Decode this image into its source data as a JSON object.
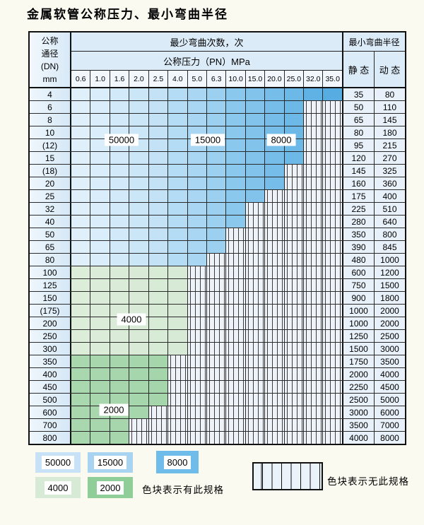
{
  "title": "金属软管公称压力、最小弯曲半径",
  "table": {
    "header": {
      "dn_lines": [
        "公称",
        "通径",
        "(DN)",
        "mm"
      ],
      "bend_times": "最少弯曲次数，次",
      "pressure": "公称压力（PN）MPa",
      "radius": "最小弯曲半径",
      "static_label": "静 态",
      "dynamic_label": "动 态",
      "pressures": [
        "0.6",
        "1.0",
        "1.6",
        "2.0",
        "2.5",
        "4.0",
        "5.0",
        "6.3",
        "10.0",
        "15.0",
        "20.0",
        "25.0",
        "32.0",
        "35.0"
      ]
    },
    "rows": [
      {
        "dn": "4",
        "family": "blue",
        "cov": 13,
        "static": "35",
        "dynamic": "80"
      },
      {
        "dn": "6",
        "family": "blue",
        "cov": 11,
        "static": "50",
        "dynamic": "110"
      },
      {
        "dn": "8",
        "family": "blue",
        "cov": 11,
        "static": "65",
        "dynamic": "145"
      },
      {
        "dn": "10",
        "family": "blue",
        "cov": 11,
        "static": "80",
        "dynamic": "180"
      },
      {
        "dn": "(12)",
        "family": "blue",
        "cov": 11,
        "static": "95",
        "dynamic": "215"
      },
      {
        "dn": "15",
        "family": "blue",
        "cov": 11,
        "static": "120",
        "dynamic": "270"
      },
      {
        "dn": "(18)",
        "family": "blue",
        "cov": 10,
        "static": "145",
        "dynamic": "325"
      },
      {
        "dn": "20",
        "family": "blue",
        "cov": 10,
        "static": "160",
        "dynamic": "360"
      },
      {
        "dn": "25",
        "family": "blue",
        "cov": 9,
        "static": "175",
        "dynamic": "400"
      },
      {
        "dn": "32",
        "family": "blue",
        "cov": 8,
        "static": "225",
        "dynamic": "510"
      },
      {
        "dn": "40",
        "family": "blue",
        "cov": 8,
        "static": "280",
        "dynamic": "640"
      },
      {
        "dn": "50",
        "family": "blue",
        "cov": 7,
        "static": "350",
        "dynamic": "800"
      },
      {
        "dn": "65",
        "family": "blue",
        "cov": 7,
        "static": "390",
        "dynamic": "845"
      },
      {
        "dn": "80",
        "family": "blue",
        "cov": 6,
        "static": "480",
        "dynamic": "1000"
      },
      {
        "dn": "100",
        "family": "green4000",
        "cov": 5,
        "static": "600",
        "dynamic": "1200"
      },
      {
        "dn": "125",
        "family": "green4000",
        "cov": 5,
        "static": "750",
        "dynamic": "1500"
      },
      {
        "dn": "150",
        "family": "green4000",
        "cov": 5,
        "static": "900",
        "dynamic": "1800"
      },
      {
        "dn": "(175)",
        "family": "green4000",
        "cov": 5,
        "static": "1000",
        "dynamic": "2000"
      },
      {
        "dn": "200",
        "family": "green4000",
        "cov": 5,
        "static": "1000",
        "dynamic": "2000"
      },
      {
        "dn": "250",
        "family": "green4000",
        "cov": 5,
        "static": "1250",
        "dynamic": "2500"
      },
      {
        "dn": "300",
        "family": "green4000",
        "cov": 5,
        "static": "1500",
        "dynamic": "3000"
      },
      {
        "dn": "350",
        "family": "green2000",
        "cov": 4,
        "static": "1750",
        "dynamic": "3500"
      },
      {
        "dn": "400",
        "family": "green2000",
        "cov": 4,
        "static": "2000",
        "dynamic": "4000"
      },
      {
        "dn": "450",
        "family": "green2000",
        "cov": 4,
        "static": "2250",
        "dynamic": "4500"
      },
      {
        "dn": "500",
        "family": "green2000",
        "cov": 4,
        "static": "2500",
        "dynamic": "5000"
      },
      {
        "dn": "600",
        "family": "green2000",
        "cov": 3,
        "static": "3000",
        "dynamic": "6000"
      },
      {
        "dn": "700",
        "family": "green2000",
        "cov": 2,
        "static": "3500",
        "dynamic": "7000"
      },
      {
        "dn": "800",
        "family": "green2000",
        "cov": 2,
        "static": "4000",
        "dynamic": "8000"
      }
    ]
  },
  "zones": {
    "blue": [
      {
        "cycles": "50000",
        "from": 0,
        "to": 4,
        "c1": "#e0f0fb",
        "c2": "#c3e2f6"
      },
      {
        "cycles": "15000",
        "from": 5,
        "to": 7,
        "c1": "#b5dcf5",
        "c2": "#9bd0f0"
      },
      {
        "cycles": "8000",
        "from": 8,
        "to": 13,
        "c1": "#8bc8ee",
        "c2": "#57ade1"
      }
    ],
    "green4000": [
      {
        "cycles": "4000",
        "from": 0,
        "to": 13,
        "c1": "#dcedda",
        "c2": "#cfe5cd"
      }
    ],
    "green2000": [
      {
        "cycles": "2000",
        "from": 0,
        "to": 13,
        "c1": "#a9d7ae",
        "c2": "#9cd1a3"
      }
    ]
  },
  "zone_labels": {
    "z50000": "50000",
    "z15000": "15000",
    "z8000": "8000",
    "z4000": "4000",
    "z2000": "2000"
  },
  "legend": {
    "sw50000": "50000",
    "sw15000": "15000",
    "sw8000": "8000",
    "sw4000": "4000",
    "sw2000": "2000",
    "have_text": "色块表示有此规格",
    "none_text": "色块表示无此规格"
  },
  "colors": {
    "blue_50000": "#c7e1f6",
    "blue_15000": "#a9d4f1",
    "blue_8000": "#6fbbe9",
    "green_4000": "#d7ead5",
    "green_2000": "#8fce99",
    "hatch_bg": "#edf3f9",
    "grid_line": "#2a2a2a",
    "header_bg": "#dcebf8"
  }
}
